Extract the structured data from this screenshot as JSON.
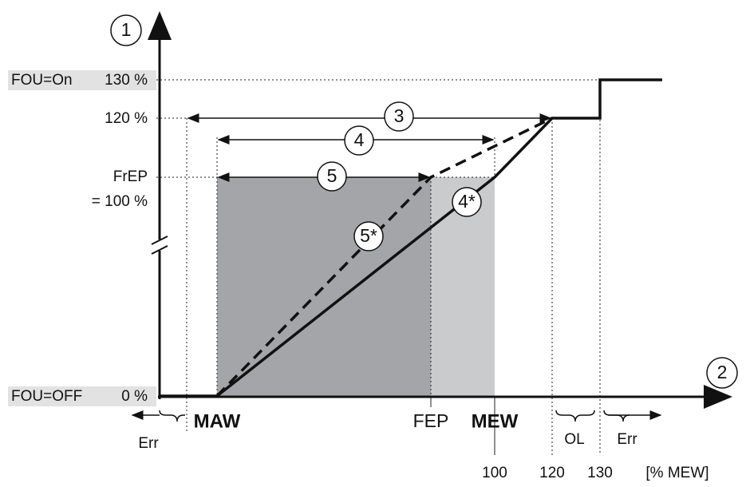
{
  "y_axis": {
    "marker": "1",
    "fou_on": "FOU=On",
    "p130": "130 %",
    "p120": "120 %",
    "frep": "FrEP",
    "p100": "= 100 %",
    "fou_off": "FOU=OFF",
    "p0": "0 %"
  },
  "x_axis": {
    "marker": "2",
    "maw": "MAW",
    "fep": "FEP",
    "mew": "MEW",
    "err_low": "Err",
    "ol": "OL",
    "err_high": "Err",
    "v100": "100",
    "v120": "120",
    "v130": "130",
    "unit": "[% MEW]"
  },
  "callouts": [
    "3",
    "4",
    "5",
    "4*",
    "5*"
  ]
}
